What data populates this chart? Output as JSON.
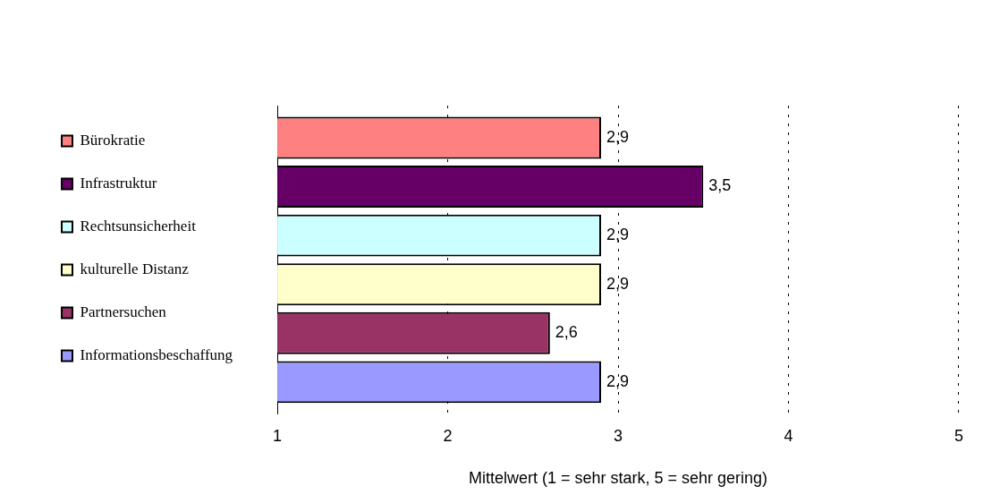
{
  "chart_data": {
    "type": "bar",
    "orientation": "horizontal",
    "xlabel": "Mittelwert (1 = sehr stark, 5 = sehr gering)",
    "categories": [
      null
    ],
    "series": [
      {
        "name": "Bürokratie",
        "color": "#ff8080",
        "values": [
          2.9
        ],
        "value_labels": [
          "2,9"
        ]
      },
      {
        "name": "Infrastruktur",
        "color": "#660066",
        "values": [
          3.5
        ],
        "value_labels": [
          "3,5"
        ]
      },
      {
        "name": "Rechtsunsicherheit",
        "color": "#ccffff",
        "values": [
          2.9
        ],
        "value_labels": [
          "2,9"
        ]
      },
      {
        "name": "kulturelle Distanz",
        "color": "#ffffcc",
        "values": [
          2.9
        ],
        "value_labels": [
          "2,9"
        ]
      },
      {
        "name": "Partnersuchen",
        "color": "#993366",
        "values": [
          2.6
        ],
        "value_labels": [
          "2,6"
        ]
      },
      {
        "name": "Informationsbeschaffung",
        "color": "#9999ff",
        "values": [
          2.9
        ],
        "value_labels": [
          "2,9"
        ]
      }
    ],
    "xlim": [
      1,
      5
    ],
    "xticks": [
      1,
      2,
      3,
      4,
      5
    ],
    "grid": "x",
    "legend": "left",
    "tick_labels": "x"
  }
}
